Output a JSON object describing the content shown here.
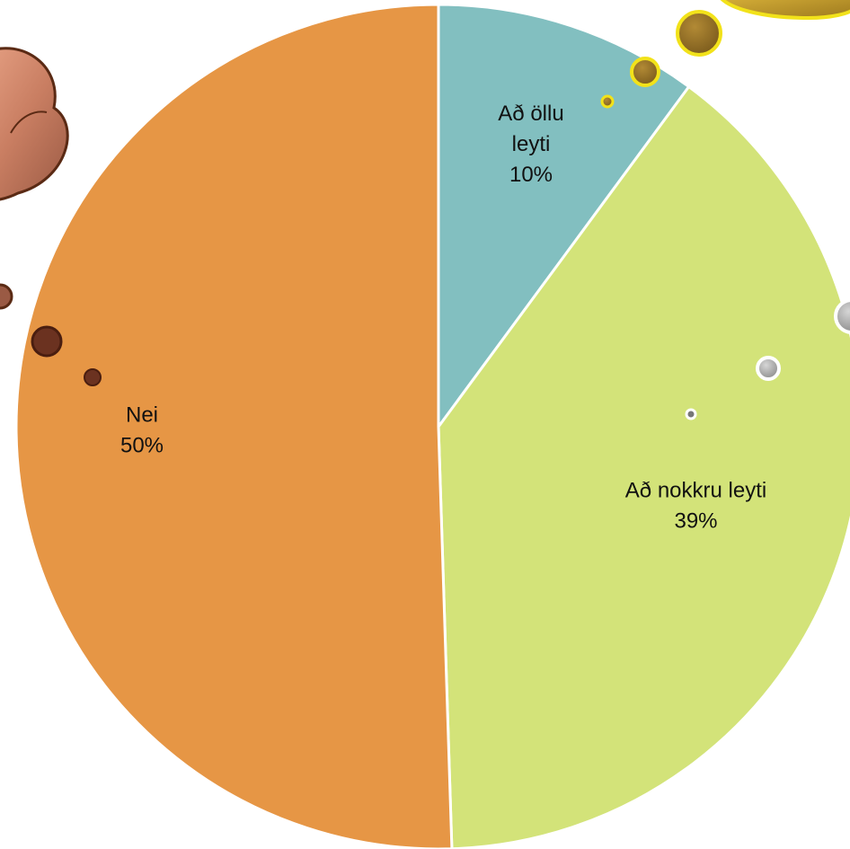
{
  "chart_data": {
    "type": "pie",
    "title": "",
    "slices": [
      {
        "label_lines": [
          "Að öllu",
          "leyti"
        ],
        "percent_label": "10%",
        "value": 10,
        "color": "#82BFC0"
      },
      {
        "label_lines": [
          "Að nokkru leyti"
        ],
        "percent_label": "39%",
        "value": 39,
        "color": "#D3E379"
      },
      {
        "label_lines": [
          "Nei"
        ],
        "percent_label": "50%",
        "value": 50,
        "color": "#E69645"
      }
    ],
    "start": "12 o'clock",
    "direction": "clockwise",
    "slice_border_color": "#ffffff",
    "legend": "none"
  }
}
